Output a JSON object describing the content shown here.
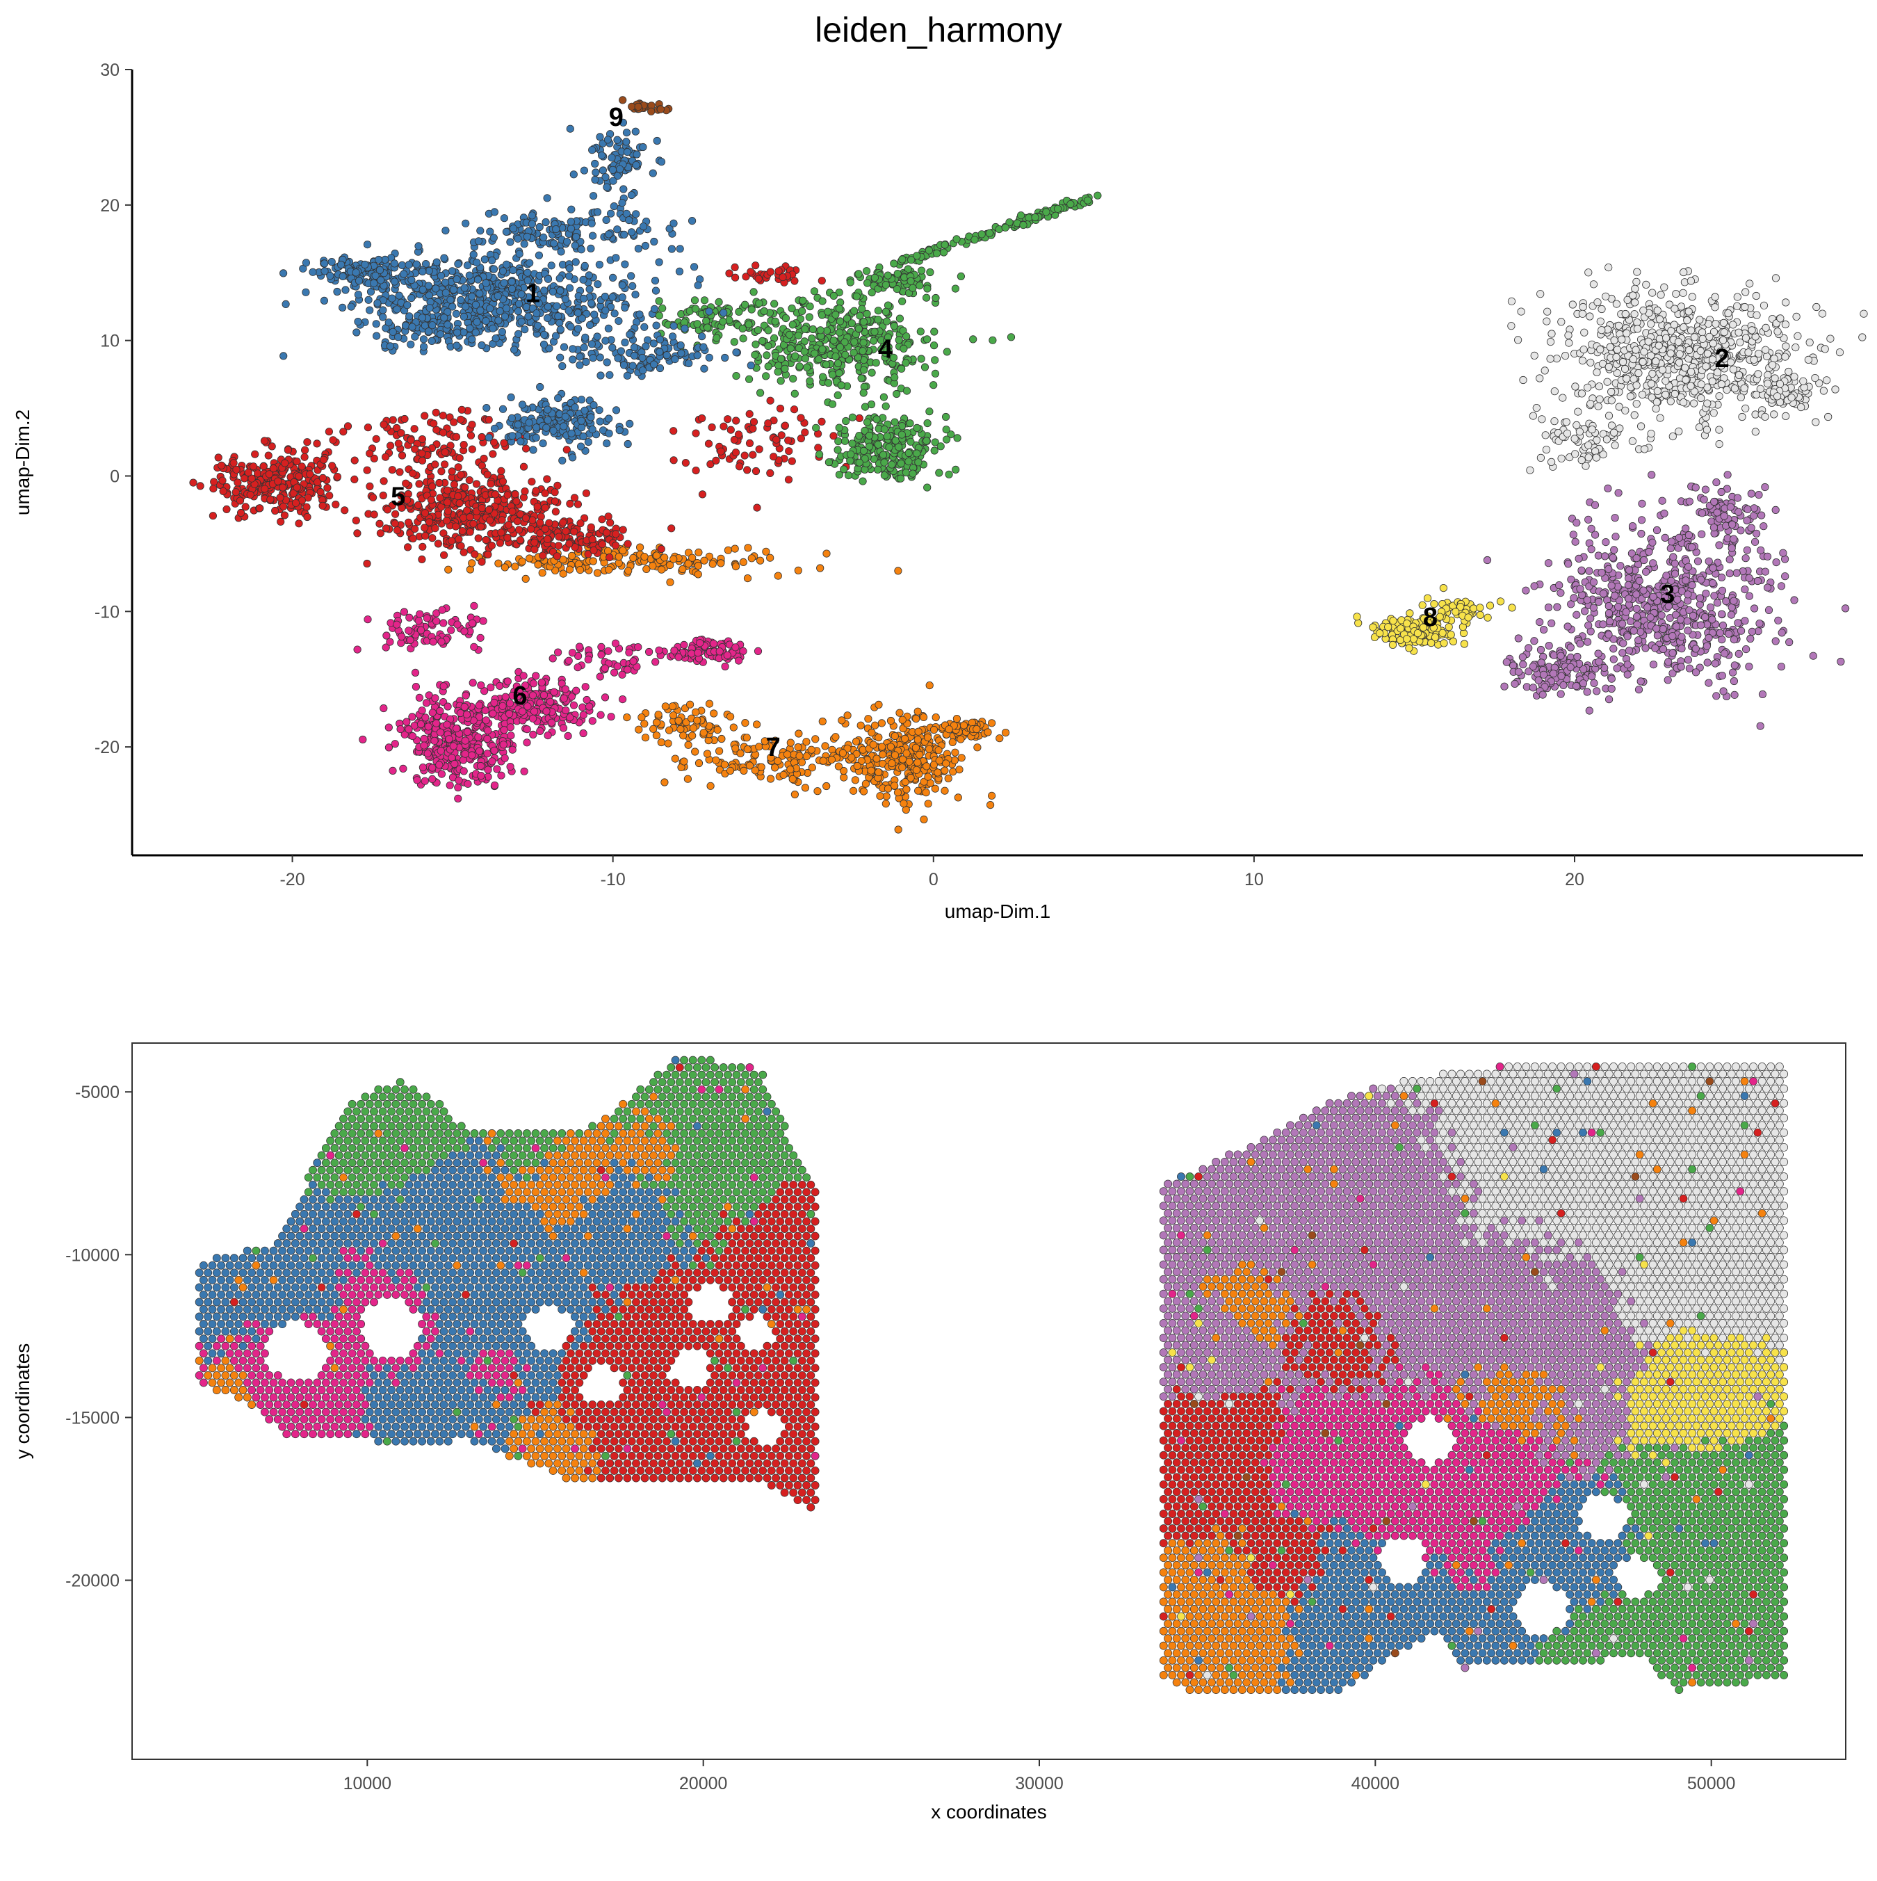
{
  "title": "leiden_harmony",
  "palette": {
    "1": "#3a78b0",
    "2": "#e6e6e6",
    "3": "#b277b8",
    "4": "#4aa94a",
    "5": "#d62020",
    "6": "#e3258a",
    "7": "#f5820f",
    "8": "#f7e24a",
    "9": "#9a4b1c"
  },
  "chart_data": [
    {
      "type": "scatter",
      "name": "umap",
      "xlabel": "umap-Dim.1",
      "ylabel": "umap-Dim.2",
      "xlim": [
        -25,
        29
      ],
      "ylim": [
        -28,
        30
      ],
      "xticks": [
        -20,
        -10,
        0,
        10,
        20
      ],
      "yticks": [
        -20,
        -10,
        0,
        10,
        20,
        30
      ],
      "grid": false,
      "legend": "none",
      "cluster_labels": [
        {
          "label": "1",
          "x": -12.5,
          "y": 13.5
        },
        {
          "label": "2",
          "x": 24.6,
          "y": 8.7
        },
        {
          "label": "3",
          "x": 22.9,
          "y": -8.7
        },
        {
          "label": "4",
          "x": -1.5,
          "y": 9.4
        },
        {
          "label": "5",
          "x": -16.7,
          "y": -1.5
        },
        {
          "label": "6",
          "x": -12.9,
          "y": -16.2
        },
        {
          "label": "7",
          "x": -5.0,
          "y": -20.0
        },
        {
          "label": "8",
          "x": 15.5,
          "y": -10.4
        },
        {
          "label": "9",
          "x": -9.9,
          "y": 26.5
        }
      ],
      "clusters": [
        {
          "id": "1",
          "regions": [
            {
              "cx": -13.5,
              "cy": 13.0,
              "rx": 4.2,
              "ry": 3.2,
              "n": 620
            },
            {
              "cx": -17.8,
              "cy": 15.0,
              "rx": 1.4,
              "ry": 1.0,
              "n": 130
            },
            {
              "cx": -11.5,
              "cy": 18.0,
              "rx": 2.5,
              "ry": 1.6,
              "n": 130
            },
            {
              "cx": -9.8,
              "cy": 23.0,
              "rx": 0.9,
              "ry": 2.6,
              "n": 90
            },
            {
              "cx": -11.8,
              "cy": 4.0,
              "rx": 1.6,
              "ry": 1.8,
              "n": 170
            },
            {
              "cx": -9.0,
              "cy": 9.0,
              "rx": 2.0,
              "ry": 1.6,
              "n": 110
            },
            {
              "cx": -15.5,
              "cy": 11.0,
              "rx": 1.8,
              "ry": 1.6,
              "n": 80
            }
          ]
        },
        {
          "id": "2",
          "regions": [
            {
              "cx": 23.2,
              "cy": 9.0,
              "rx": 3.6,
              "ry": 4.2,
              "n": 700
            },
            {
              "cx": 20.5,
              "cy": 2.5,
              "rx": 1.6,
              "ry": 1.6,
              "n": 70
            },
            {
              "cx": 26.5,
              "cy": 6.0,
              "rx": 0.8,
              "ry": 1.6,
              "n": 60
            }
          ]
        },
        {
          "id": "3",
          "regions": [
            {
              "cx": 22.8,
              "cy": -9.5,
              "rx": 3.2,
              "ry": 5.6,
              "n": 620
            },
            {
              "cx": 19.8,
              "cy": -14.5,
              "rx": 1.8,
              "ry": 1.4,
              "n": 120
            },
            {
              "cx": 24.6,
              "cy": -3.0,
              "rx": 1.0,
              "ry": 2.4,
              "n": 80
            }
          ]
        },
        {
          "id": "4",
          "regions": [
            {
              "cx": -3.0,
              "cy": 9.8,
              "rx": 2.6,
              "ry": 3.2,
              "n": 380
            },
            {
              "cx": -1.4,
              "cy": 2.0,
              "rx": 1.4,
              "ry": 2.2,
              "n": 230
            },
            {
              "cx": -1.2,
              "cy": 14.5,
              "rx": 1.2,
              "ry": 1.0,
              "n": 90
            },
            {
              "cx": -6.5,
              "cy": 11.5,
              "rx": 1.6,
              "ry": 1.4,
              "n": 90
            }
          ]
        },
        {
          "id": "5",
          "regions": [
            {
              "cx": -20.5,
              "cy": -0.5,
              "rx": 1.8,
              "ry": 2.2,
              "n": 260
            },
            {
              "cx": -14.5,
              "cy": -2.5,
              "rx": 3.0,
              "ry": 2.6,
              "n": 380
            },
            {
              "cx": -11.5,
              "cy": -4.5,
              "rx": 2.0,
              "ry": 1.2,
              "n": 120
            },
            {
              "cx": -15.5,
              "cy": 2.5,
              "rx": 2.5,
              "ry": 2.2,
              "n": 110
            },
            {
              "cx": -5.5,
              "cy": 2.5,
              "rx": 2.5,
              "ry": 3.0,
              "n": 80
            },
            {
              "cx": -5.0,
              "cy": 14.8,
              "rx": 1.2,
              "ry": 0.6,
              "n": 30
            }
          ]
        },
        {
          "id": "6",
          "regions": [
            {
              "cx": -14.8,
              "cy": -19.5,
              "rx": 1.6,
              "ry": 2.8,
              "n": 340
            },
            {
              "cx": -12.5,
              "cy": -17.0,
              "rx": 1.8,
              "ry": 1.8,
              "n": 200
            },
            {
              "cx": -15.5,
              "cy": -11.5,
              "rx": 1.5,
              "ry": 1.4,
              "n": 80
            },
            {
              "cx": -7.0,
              "cy": -13.0,
              "rx": 1.2,
              "ry": 0.9,
              "n": 80
            },
            {
              "cx": -10.0,
              "cy": -13.5,
              "rx": 1.6,
              "ry": 1.2,
              "n": 50
            }
          ]
        },
        {
          "id": "7",
          "regions": [
            {
              "cx": -0.8,
              "cy": -21.0,
              "rx": 1.8,
              "ry": 3.0,
              "n": 290
            },
            {
              "cx": 1.0,
              "cy": -18.7,
              "rx": 1.0,
              "ry": 0.6,
              "n": 60
            },
            {
              "cx": -4.5,
              "cy": -21.0,
              "rx": 2.6,
              "ry": 1.5,
              "n": 140
            },
            {
              "cx": -9.5,
              "cy": -6.3,
              "rx": 4.5,
              "ry": 1.0,
              "n": 160
            },
            {
              "cx": -7.5,
              "cy": -18.5,
              "rx": 1.6,
              "ry": 1.4,
              "n": 70
            }
          ]
        },
        {
          "id": "8",
          "regions": [
            {
              "cx": 15.0,
              "cy": -11.5,
              "rx": 1.2,
              "ry": 0.9,
              "n": 150
            },
            {
              "cx": 16.5,
              "cy": -9.8,
              "rx": 0.9,
              "ry": 0.8,
              "n": 50
            }
          ]
        },
        {
          "id": "9",
          "regions": [
            {
              "cx": -9.0,
              "cy": 27.2,
              "rx": 0.6,
              "ry": 0.4,
              "n": 25
            }
          ]
        }
      ],
      "streaks": [
        {
          "id": "4",
          "from": [
            -1.0,
            15.8
          ],
          "to": [
            5.0,
            20.6
          ],
          "n": 110
        }
      ]
    },
    {
      "type": "scatter",
      "name": "spatial",
      "xlabel": "x coordinates",
      "ylabel": "y coordinates",
      "xlim": [
        3000,
        54000
      ],
      "ylim": [
        -25500,
        -3500
      ],
      "xticks": [
        10000,
        20000,
        30000,
        40000,
        50000
      ],
      "xtick_labels": [
        "10000",
        "20000",
        "30000",
        "40000",
        "50000"
      ],
      "yticks": [
        -5000,
        -10000,
        -15000,
        -20000
      ],
      "ytick_labels": [
        "-5000",
        "-10000",
        "-15000",
        "-20000"
      ],
      "grid": false,
      "legend": "none",
      "spot_spacing": 260,
      "tissues": [
        {
          "outline": [
            [
              5000,
              -10200
            ],
            [
              7300,
              -9600
            ],
            [
              9300,
              -5400
            ],
            [
              11000,
              -4600
            ],
            [
              12000,
              -5200
            ],
            [
              13000,
              -6200
            ],
            [
              16500,
              -6200
            ],
            [
              18000,
              -5000
            ],
            [
              19300,
              -3800
            ],
            [
              21700,
              -4300
            ],
            [
              22500,
              -6200
            ],
            [
              23400,
              -7800
            ],
            [
              23400,
              -17900
            ],
            [
              21500,
              -16900
            ],
            [
              18500,
              -16900
            ],
            [
              16000,
              -16900
            ],
            [
              14500,
              -16300
            ],
            [
              13000,
              -15700
            ],
            [
              11700,
              -15800
            ],
            [
              7500,
              -15600
            ],
            [
              6700,
              -14700
            ],
            [
              5000,
              -14000
            ]
          ],
          "holes": [
            [
              7900,
              -13000,
              900
            ],
            [
              10700,
              -12300,
              900
            ],
            [
              15400,
              -12300,
              700
            ],
            [
              19600,
              -13500,
              600
            ],
            [
              20200,
              -11500,
              600
            ],
            [
              21600,
              -12400,
              500
            ],
            [
              17000,
              -14000,
              600
            ],
            [
              21800,
              -15300,
              500
            ]
          ],
          "zones": [
            {
              "id": "1",
              "x": 13500,
              "y": -10800,
              "w": 1.7
            },
            {
              "id": "1",
              "x": 7000,
              "y": -11000,
              "w": 1.0
            },
            {
              "id": "1",
              "x": 12500,
              "y": -15000,
              "w": 1.0
            },
            {
              "id": "1",
              "x": 17500,
              "y": -9000,
              "w": 1.0
            },
            {
              "id": "4",
              "x": 10600,
              "y": -5400,
              "w": 1.1
            },
            {
              "id": "4",
              "x": 20300,
              "y": -6600,
              "w": 1.4
            },
            {
              "id": "4",
              "x": 15000,
              "y": -6700,
              "w": 0.6
            },
            {
              "id": "5",
              "x": 19500,
              "y": -14300,
              "w": 1.8
            },
            {
              "id": "5",
              "x": 22800,
              "y": -10000,
              "w": 1.2
            },
            {
              "id": "6",
              "x": 7800,
              "y": -13300,
              "w": 1.0
            },
            {
              "id": "6",
              "x": 10800,
              "y": -11800,
              "w": 0.9
            },
            {
              "id": "6",
              "x": 13800,
              "y": -13500,
              "w": 0.5
            },
            {
              "id": "7",
              "x": 15800,
              "y": -7800,
              "w": 0.9
            },
            {
              "id": "7",
              "x": 18600,
              "y": -6800,
              "w": 0.7
            },
            {
              "id": "7",
              "x": 15400,
              "y": -16300,
              "w": 0.7
            },
            {
              "id": "7",
              "x": 6000,
              "y": -14200,
              "w": 0.4
            }
          ]
        },
        {
          "outline": [
            [
              33700,
              -7800
            ],
            [
              36500,
              -6500
            ],
            [
              38500,
              -5300
            ],
            [
              41000,
              -4600
            ],
            [
              43000,
              -4300
            ],
            [
              45000,
              -4000
            ],
            [
              52200,
              -4000
            ],
            [
              52200,
              -23000
            ],
            [
              49000,
              -23400
            ],
            [
              48000,
              -22400
            ],
            [
              44500,
              -22600
            ],
            [
              42500,
              -22700
            ],
            [
              41800,
              -21600
            ],
            [
              40500,
              -22400
            ],
            [
              39000,
              -23400
            ],
            [
              34500,
              -23400
            ],
            [
              33700,
              -23000
            ]
          ],
          "holes": [
            [
              44900,
              -20900,
              800
            ],
            [
              46800,
              -18100,
              700
            ],
            [
              41600,
              -15700,
              700
            ],
            [
              40800,
              -19400,
              700
            ],
            [
              47800,
              -19900,
              600
            ]
          ],
          "zones": [
            {
              "id": "2",
              "x": 46500,
              "y": -6500,
              "w": 2.2
            },
            {
              "id": "2",
              "x": 49500,
              "y": -10500,
              "w": 1.2
            },
            {
              "id": "3",
              "x": 39500,
              "y": -9500,
              "w": 1.8
            },
            {
              "id": "3",
              "x": 44500,
              "y": -12000,
              "w": 1.6
            },
            {
              "id": "3",
              "x": 35000,
              "y": -13000,
              "w": 0.8
            },
            {
              "id": "5",
              "x": 34700,
              "y": -16000,
              "w": 1.0
            },
            {
              "id": "5",
              "x": 39000,
              "y": -12000,
              "w": 0.8
            },
            {
              "id": "5",
              "x": 37500,
              "y": -19500,
              "w": 0.6
            },
            {
              "id": "6",
              "x": 42000,
              "y": -17000,
              "w": 1.4
            },
            {
              "id": "6",
              "x": 38800,
              "y": -16400,
              "w": 0.8
            },
            {
              "id": "7",
              "x": 35500,
              "y": -21600,
              "w": 1.0
            },
            {
              "id": "7",
              "x": 44200,
              "y": -14200,
              "w": 0.8
            },
            {
              "id": "7",
              "x": 36500,
              "y": -11500,
              "w": 0.6
            },
            {
              "id": "1",
              "x": 40000,
              "y": -21500,
              "w": 1.4
            },
            {
              "id": "1",
              "x": 45500,
              "y": -19500,
              "w": 1.0
            },
            {
              "id": "4",
              "x": 50500,
              "y": -19000,
              "w": 1.4
            },
            {
              "id": "4",
              "x": 47000,
              "y": -22000,
              "w": 0.8
            },
            {
              "id": "8",
              "x": 49800,
              "y": -14000,
              "w": 0.9
            },
            {
              "id": "9",
              "x": 40500,
              "y": -22300,
              "w": 0.35
            }
          ]
        }
      ]
    }
  ]
}
